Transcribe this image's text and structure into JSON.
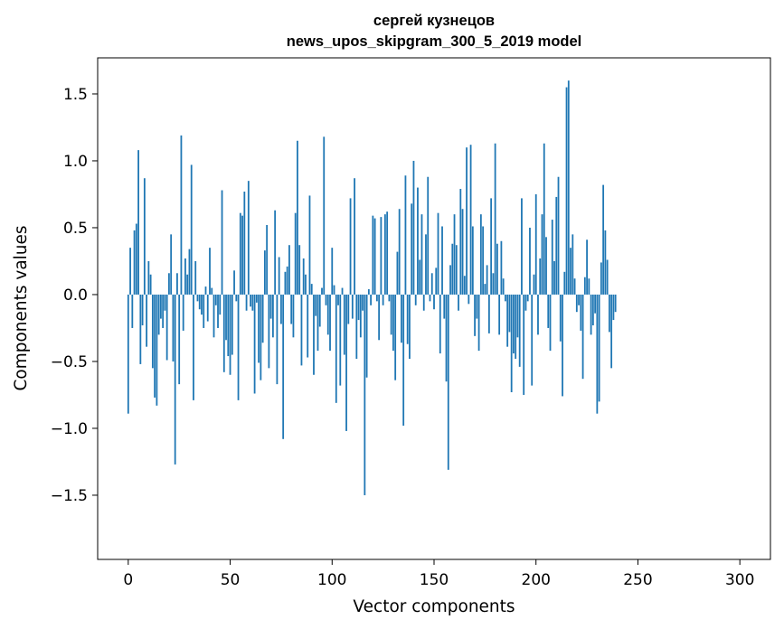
{
  "chart_data": {
    "type": "bar",
    "title_line1": "сергей кузнецов",
    "title_line2": "news_upos_skipgram_300_5_2019 model",
    "xlabel": "Vector components",
    "ylabel": "Components values",
    "xlim": [
      -15,
      315
    ],
    "ylim": [
      -1.98,
      1.77
    ],
    "xticks": [
      0,
      50,
      100,
      150,
      200,
      250,
      300
    ],
    "xtick_labels": [
      "0",
      "50",
      "100",
      "150",
      "200",
      "250",
      "300"
    ],
    "yticks": [
      1.5,
      1.0,
      0.5,
      0.0,
      -0.5,
      -1.0,
      -1.5
    ],
    "ytick_labels": [
      "1.5",
      "1.0",
      "0.5",
      "0.0",
      "−0.5",
      "−1.0",
      "−1.5"
    ],
    "bar_color": "#1f77b4",
    "values": [
      -0.89,
      0.35,
      -0.25,
      0.48,
      0.53,
      1.08,
      -0.52,
      -0.23,
      0.87,
      -0.39,
      0.25,
      0.15,
      -0.55,
      -0.77,
      -0.83,
      -0.3,
      -0.18,
      -0.25,
      -0.12,
      -0.49,
      0.16,
      0.45,
      -0.5,
      -1.27,
      0.16,
      -0.67,
      1.19,
      -0.27,
      0.27,
      0.15,
      0.34,
      0.97,
      -0.79,
      0.25,
      -0.05,
      -0.11,
      -0.15,
      -0.25,
      0.06,
      -0.2,
      0.35,
      0.05,
      -0.32,
      -0.08,
      -0.25,
      -0.15,
      0.78,
      -0.58,
      -0.34,
      -0.46,
      -0.6,
      -0.45,
      0.18,
      -0.05,
      -0.79,
      0.61,
      0.59,
      0.77,
      -0.12,
      0.85,
      -0.09,
      -0.12,
      -0.74,
      -0.06,
      -0.51,
      -0.64,
      -0.36,
      0.33,
      0.52,
      -0.55,
      -0.18,
      -0.32,
      0.63,
      -0.67,
      0.28,
      -0.22,
      -1.08,
      0.17,
      0.21,
      0.37,
      -0.22,
      -0.32,
      0.61,
      1.15,
      0.37,
      -0.53,
      0.27,
      0.15,
      -0.47,
      0.74,
      0.08,
      -0.6,
      -0.16,
      -0.42,
      -0.24,
      0.05,
      1.18,
      -0.08,
      -0.3,
      -0.42,
      0.35,
      0.07,
      -0.81,
      -0.08,
      -0.68,
      0.05,
      -0.45,
      -1.02,
      -0.22,
      0.72,
      -0.18,
      0.87,
      -0.48,
      -0.19,
      -0.32,
      -0.12,
      -1.5,
      -0.62,
      0.04,
      -0.08,
      0.59,
      0.57,
      -0.05,
      -0.34,
      0.58,
      -0.08,
      0.6,
      0.62,
      -0.05,
      -0.3,
      -0.42,
      -0.64,
      0.32,
      0.64,
      -0.36,
      -0.98,
      0.89,
      -0.37,
      -0.48,
      0.68,
      1.0,
      -0.08,
      0.8,
      0.26,
      0.6,
      -0.12,
      0.45,
      0.88,
      -0.05,
      0.16,
      -0.11,
      0.2,
      0.61,
      -0.44,
      0.51,
      -0.18,
      -0.65,
      -1.31,
      0.22,
      0.38,
      0.6,
      0.37,
      -0.12,
      0.79,
      0.64,
      0.14,
      1.1,
      -0.07,
      1.12,
      0.51,
      -0.31,
      -0.18,
      -0.42,
      0.6,
      0.51,
      0.08,
      0.22,
      -0.29,
      0.72,
      0.16,
      1.13,
      0.38,
      -0.3,
      0.4,
      0.12,
      -0.05,
      -0.39,
      -0.28,
      -0.73,
      -0.44,
      -0.48,
      -0.32,
      -0.54,
      0.72,
      -0.75,
      -0.12,
      -0.05,
      0.5,
      -0.68,
      0.15,
      0.75,
      -0.3,
      0.27,
      0.6,
      1.13,
      0.43,
      -0.25,
      -0.42,
      0.56,
      0.25,
      0.73,
      0.88,
      -0.35,
      -0.76,
      0.17,
      1.55,
      1.6,
      0.35,
      0.45,
      0.12,
      -0.13,
      -0.08,
      -0.27,
      -0.63,
      0.13,
      0.41,
      0.12,
      -0.3,
      -0.23,
      -0.14,
      -0.89,
      -0.8,
      0.24,
      0.82,
      0.48,
      0.26,
      -0.28,
      -0.55,
      -0.19,
      -0.13
    ]
  }
}
